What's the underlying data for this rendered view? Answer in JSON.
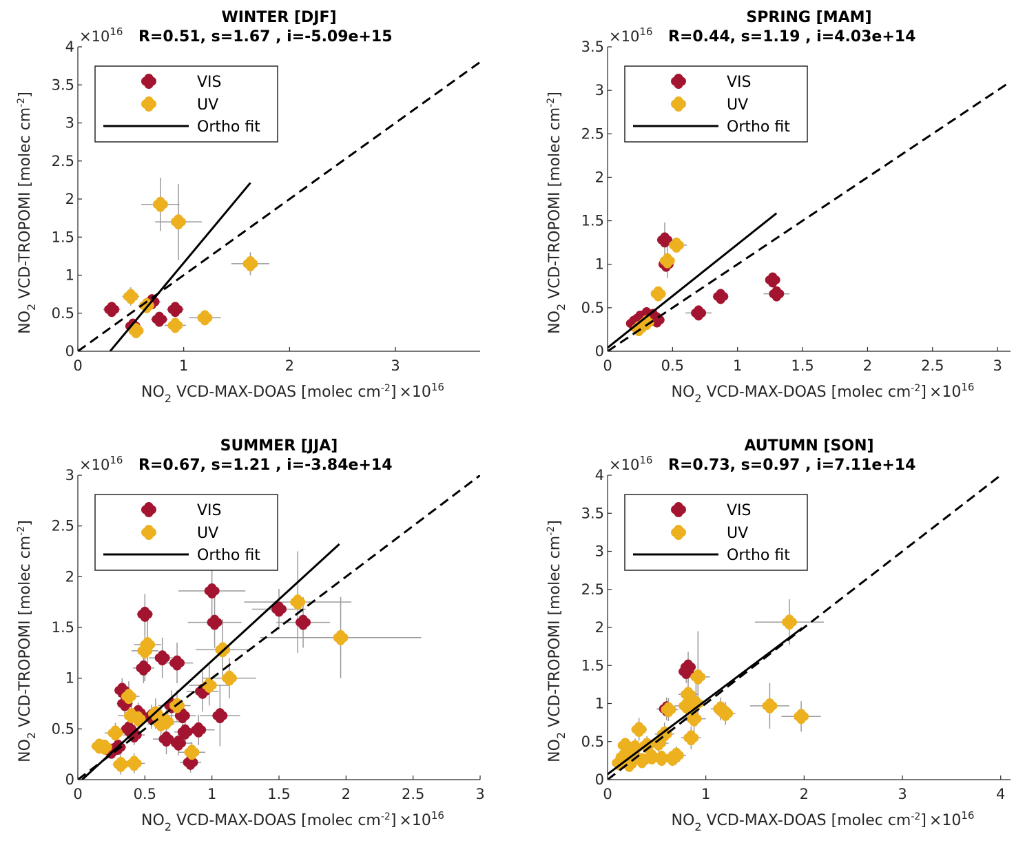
{
  "colors": {
    "vis": "#a2142f",
    "uv": "#edb120",
    "fit": "#000000",
    "err": "#999999",
    "axis": "#262626"
  },
  "chart_data": [
    {
      "type": "scatter",
      "title": "WINTER [DJF]",
      "stats": "R=0.51, s=1.67 , i=-5.09e+15",
      "xlabel": "VCD-MAX-DOAS [molec cm",
      "ylabel": "VCD-TROPOMI [molec cm",
      "xlim": [
        0,
        3.8
      ],
      "ylim": [
        0,
        4
      ],
      "xticks": [
        0,
        1,
        2,
        3
      ],
      "xtick_labels": [
        "0",
        "1",
        "2",
        "3"
      ],
      "yticks": [
        0,
        0.5,
        1,
        1.5,
        2,
        2.5,
        3,
        3.5,
        4
      ],
      "ytick_labels": [
        "0",
        "0.5",
        "1",
        "1.5",
        "2",
        "2.5",
        "3",
        "3.5",
        "4"
      ],
      "exponent": "×10",
      "exponent_power": "16",
      "fit": {
        "slope": 1.67,
        "intercept": -0.509,
        "x_range": [
          0.3,
          1.63
        ]
      },
      "one_to_one": true,
      "legend": {
        "position": "top-left",
        "entries": [
          "VIS",
          "UV",
          "Ortho fit"
        ]
      },
      "series": [
        {
          "name": "VIS",
          "points": [
            [
              0.32,
              0.55,
              0.08,
              0.08
            ],
            [
              0.52,
              0.33,
              0.06,
              0.08
            ],
            [
              0.7,
              0.65,
              0.08,
              0.1
            ],
            [
              0.77,
              0.42,
              0.08,
              0.08
            ],
            [
              0.92,
              0.55,
              0.08,
              0.08
            ]
          ]
        },
        {
          "name": "UV",
          "points": [
            [
              0.5,
              0.72,
              0.08,
              0.12
            ],
            [
              0.55,
              0.27,
              0.06,
              0.1
            ],
            [
              0.65,
              0.6,
              0.08,
              0.1
            ],
            [
              0.78,
              1.93,
              0.18,
              0.35
            ],
            [
              0.95,
              1.7,
              0.22,
              0.5
            ],
            [
              0.92,
              0.34,
              0.1,
              0.1
            ],
            [
              1.2,
              0.44,
              0.15,
              0.1
            ],
            [
              1.63,
              1.15,
              0.18,
              0.15
            ]
          ]
        }
      ]
    },
    {
      "type": "scatter",
      "title": "SPRING [MAM]",
      "stats": "R=0.44, s=1.19 , i=4.03e+14",
      "xlabel": "VCD-MAX-DOAS [molec cm",
      "ylabel": "VCD-TROPOMI [molec cm",
      "xlim": [
        0,
        3.1
      ],
      "ylim": [
        0,
        3.5
      ],
      "xticks": [
        0,
        0.5,
        1,
        1.5,
        2,
        2.5,
        3
      ],
      "xtick_labels": [
        "0",
        "0.5",
        "1",
        "1.5",
        "2",
        "2.5",
        "3"
      ],
      "yticks": [
        0,
        0.5,
        1,
        1.5,
        2,
        2.5,
        3,
        3.5
      ],
      "ytick_labels": [
        "0",
        "0.5",
        "1",
        "1.5",
        "2",
        "2.5",
        "3",
        "3.5"
      ],
      "exponent": "×10",
      "exponent_power": "16",
      "fit": {
        "slope": 1.19,
        "intercept": 0.0403,
        "x_range": [
          0,
          1.3
        ]
      },
      "one_to_one": true,
      "legend": {
        "position": "top-left",
        "entries": [
          "VIS",
          "UV",
          "Ortho fit"
        ]
      },
      "series": [
        {
          "name": "VIS",
          "points": [
            [
              0.2,
              0.32,
              0.04,
              0.04
            ],
            [
              0.25,
              0.38,
              0.04,
              0.04
            ],
            [
              0.3,
              0.42,
              0.04,
              0.04
            ],
            [
              0.35,
              0.4,
              0.04,
              0.04
            ],
            [
              0.38,
              0.36,
              0.04,
              0.04
            ],
            [
              0.45,
              1.0,
              0.05,
              0.08
            ],
            [
              0.44,
              1.28,
              0.06,
              0.2
            ],
            [
              0.7,
              0.44,
              0.1,
              0.06
            ],
            [
              0.87,
              0.63,
              0.06,
              0.04
            ],
            [
              1.27,
              0.82,
              0.04,
              0.05
            ],
            [
              1.3,
              0.66,
              0.1,
              0.06
            ]
          ]
        },
        {
          "name": "UV",
          "points": [
            [
              0.24,
              0.26,
              0.04,
              0.06
            ],
            [
              0.3,
              0.33,
              0.05,
              0.05
            ],
            [
              0.39,
              0.66,
              0.04,
              0.08
            ],
            [
              0.46,
              1.04,
              0.05,
              0.2
            ],
            [
              0.53,
              1.22,
              0.08,
              0.08
            ]
          ]
        }
      ]
    },
    {
      "type": "scatter",
      "title": "SUMMER [JJA]",
      "stats": "R=0.67, s=1.21 , i=-3.84e+14",
      "xlabel": "VCD-MAX-DOAS [molec cm",
      "ylabel": "VCD-TROPOMI [molec cm",
      "xlim": [
        0,
        3
      ],
      "ylim": [
        0,
        3
      ],
      "xticks": [
        0,
        0.5,
        1,
        1.5,
        2,
        2.5,
        3
      ],
      "xtick_labels": [
        "0",
        "0.5",
        "1",
        "1.5",
        "2",
        "2.5",
        "3"
      ],
      "yticks": [
        0,
        0.5,
        1,
        1.5,
        2,
        2.5,
        3
      ],
      "ytick_labels": [
        "0",
        "0.5",
        "1",
        "1.5",
        "2",
        "2.5",
        "3"
      ],
      "exponent": "×10",
      "exponent_power": "16",
      "fit": {
        "slope": 1.21,
        "intercept": -0.0384,
        "x_range": [
          0.03,
          1.95
        ]
      },
      "one_to_one": true,
      "legend": {
        "position": "top-left",
        "entries": [
          "VIS",
          "UV",
          "Ortho fit"
        ]
      },
      "series": [
        {
          "name": "VIS",
          "points": [
            [
              0.25,
              0.28,
              0.06,
              0.06
            ],
            [
              0.3,
              0.32,
              0.06,
              0.06
            ],
            [
              0.33,
              0.88,
              0.06,
              0.12
            ],
            [
              0.35,
              0.75,
              0.06,
              0.1
            ],
            [
              0.38,
              0.5,
              0.08,
              0.12
            ],
            [
              0.42,
              0.44,
              0.08,
              0.1
            ],
            [
              0.45,
              0.66,
              0.1,
              0.1
            ],
            [
              0.49,
              1.1,
              0.08,
              0.15
            ],
            [
              0.5,
              1.63,
              0.06,
              0.2
            ],
            [
              0.55,
              0.62,
              0.1,
              0.12
            ],
            [
              0.63,
              1.2,
              0.1,
              0.2
            ],
            [
              0.66,
              0.4,
              0.1,
              0.15
            ],
            [
              0.7,
              0.73,
              0.1,
              0.15
            ],
            [
              0.74,
              1.15,
              0.12,
              0.2
            ],
            [
              0.75,
              0.36,
              0.1,
              0.12
            ],
            [
              0.78,
              0.63,
              0.1,
              0.15
            ],
            [
              0.8,
              0.47,
              0.08,
              0.1
            ],
            [
              0.84,
              0.17,
              0.08,
              0.1
            ],
            [
              0.9,
              0.49,
              0.12,
              0.15
            ],
            [
              0.93,
              0.87,
              0.12,
              0.2
            ],
            [
              1.0,
              1.86,
              0.25,
              0.3
            ],
            [
              1.02,
              1.55,
              0.2,
              0.25
            ],
            [
              1.06,
              0.63,
              0.15,
              0.3
            ],
            [
              1.5,
              1.68,
              0.2,
              0.2
            ],
            [
              1.68,
              1.55,
              0.2,
              0.25
            ]
          ]
        },
        {
          "name": "UV",
          "points": [
            [
              0.16,
              0.33,
              0.06,
              0.06
            ],
            [
              0.2,
              0.32,
              0.06,
              0.06
            ],
            [
              0.28,
              0.46,
              0.08,
              0.1
            ],
            [
              0.32,
              0.15,
              0.06,
              0.1
            ],
            [
              0.38,
              0.82,
              0.08,
              0.15
            ],
            [
              0.4,
              0.63,
              0.1,
              0.15
            ],
            [
              0.42,
              0.16,
              0.08,
              0.1
            ],
            [
              0.45,
              0.6,
              0.1,
              0.12
            ],
            [
              0.5,
              1.27,
              0.1,
              0.3
            ],
            [
              0.52,
              1.33,
              0.1,
              0.25
            ],
            [
              0.58,
              0.65,
              0.1,
              0.15
            ],
            [
              0.62,
              0.55,
              0.1,
              0.15
            ],
            [
              0.66,
              0.57,
              0.1,
              0.12
            ],
            [
              0.74,
              0.73,
              0.1,
              0.15
            ],
            [
              0.85,
              0.27,
              0.1,
              0.1
            ],
            [
              0.98,
              0.93,
              0.15,
              0.2
            ],
            [
              1.08,
              1.28,
              0.2,
              0.3
            ],
            [
              1.13,
              1.0,
              0.2,
              0.2
            ],
            [
              1.64,
              1.75,
              0.4,
              0.5
            ],
            [
              1.96,
              1.4,
              0.6,
              0.4
            ]
          ]
        }
      ]
    },
    {
      "type": "scatter",
      "title": "AUTUMN [SON]",
      "stats": "R=0.73, s=0.97 , i=7.11e+14",
      "xlabel": "VCD-MAX-DOAS [molec cm",
      "ylabel": "VCD-TROPOMI [molec cm",
      "xlim": [
        0,
        4.1
      ],
      "ylim": [
        0,
        4
      ],
      "xticks": [
        0,
        1,
        2,
        3,
        4
      ],
      "xtick_labels": [
        "0",
        "1",
        "2",
        "3",
        "4"
      ],
      "yticks": [
        0,
        0.5,
        1,
        1.5,
        2,
        2.5,
        3,
        3.5,
        4
      ],
      "ytick_labels": [
        "0",
        "0.5",
        "1",
        "1.5",
        "2",
        "2.5",
        "3",
        "3.5",
        "4"
      ],
      "exponent": "×10",
      "exponent_power": "16",
      "fit": {
        "slope": 0.97,
        "intercept": 0.0711,
        "x_range": [
          0,
          1.98
        ]
      },
      "one_to_one": true,
      "legend": {
        "position": "top-left",
        "entries": [
          "VIS",
          "UV",
          "Ortho fit"
        ]
      },
      "series": [
        {
          "name": "VIS",
          "points": [
            [
              0.6,
              0.93,
              0.1,
              0.15
            ],
            [
              0.8,
              1.42,
              0.08,
              0.15
            ],
            [
              0.82,
              1.48,
              0.08,
              0.2
            ]
          ]
        },
        {
          "name": "UV",
          "points": [
            [
              0.12,
              0.22,
              0.05,
              0.08
            ],
            [
              0.16,
              0.3,
              0.06,
              0.08
            ],
            [
              0.18,
              0.45,
              0.06,
              0.1
            ],
            [
              0.22,
              0.2,
              0.06,
              0.08
            ],
            [
              0.25,
              0.35,
              0.08,
              0.1
            ],
            [
              0.28,
              0.42,
              0.08,
              0.12
            ],
            [
              0.32,
              0.66,
              0.08,
              0.15
            ],
            [
              0.35,
              0.25,
              0.08,
              0.1
            ],
            [
              0.4,
              0.45,
              0.1,
              0.12
            ],
            [
              0.45,
              0.3,
              0.1,
              0.1
            ],
            [
              0.52,
              0.48,
              0.1,
              0.12
            ],
            [
              0.55,
              0.28,
              0.1,
              0.1
            ],
            [
              0.58,
              0.6,
              0.1,
              0.15
            ],
            [
              0.62,
              0.92,
              0.1,
              0.15
            ],
            [
              0.66,
              0.28,
              0.1,
              0.1
            ],
            [
              0.7,
              0.32,
              0.1,
              0.12
            ],
            [
              0.8,
              0.97,
              0.12,
              0.2
            ],
            [
              0.82,
              1.12,
              0.1,
              0.2
            ],
            [
              0.85,
              0.55,
              0.1,
              0.15
            ],
            [
              0.88,
              0.8,
              0.12,
              0.2
            ],
            [
              0.9,
              1.0,
              0.1,
              0.3
            ],
            [
              0.92,
              1.35,
              0.12,
              0.6
            ],
            [
              1.15,
              0.93,
              0.1,
              0.15
            ],
            [
              1.2,
              0.87,
              0.1,
              0.15
            ],
            [
              1.65,
              0.97,
              0.2,
              0.3
            ],
            [
              1.85,
              2.07,
              0.35,
              0.3
            ],
            [
              1.97,
              0.83,
              0.2,
              0.2
            ]
          ]
        }
      ]
    }
  ]
}
